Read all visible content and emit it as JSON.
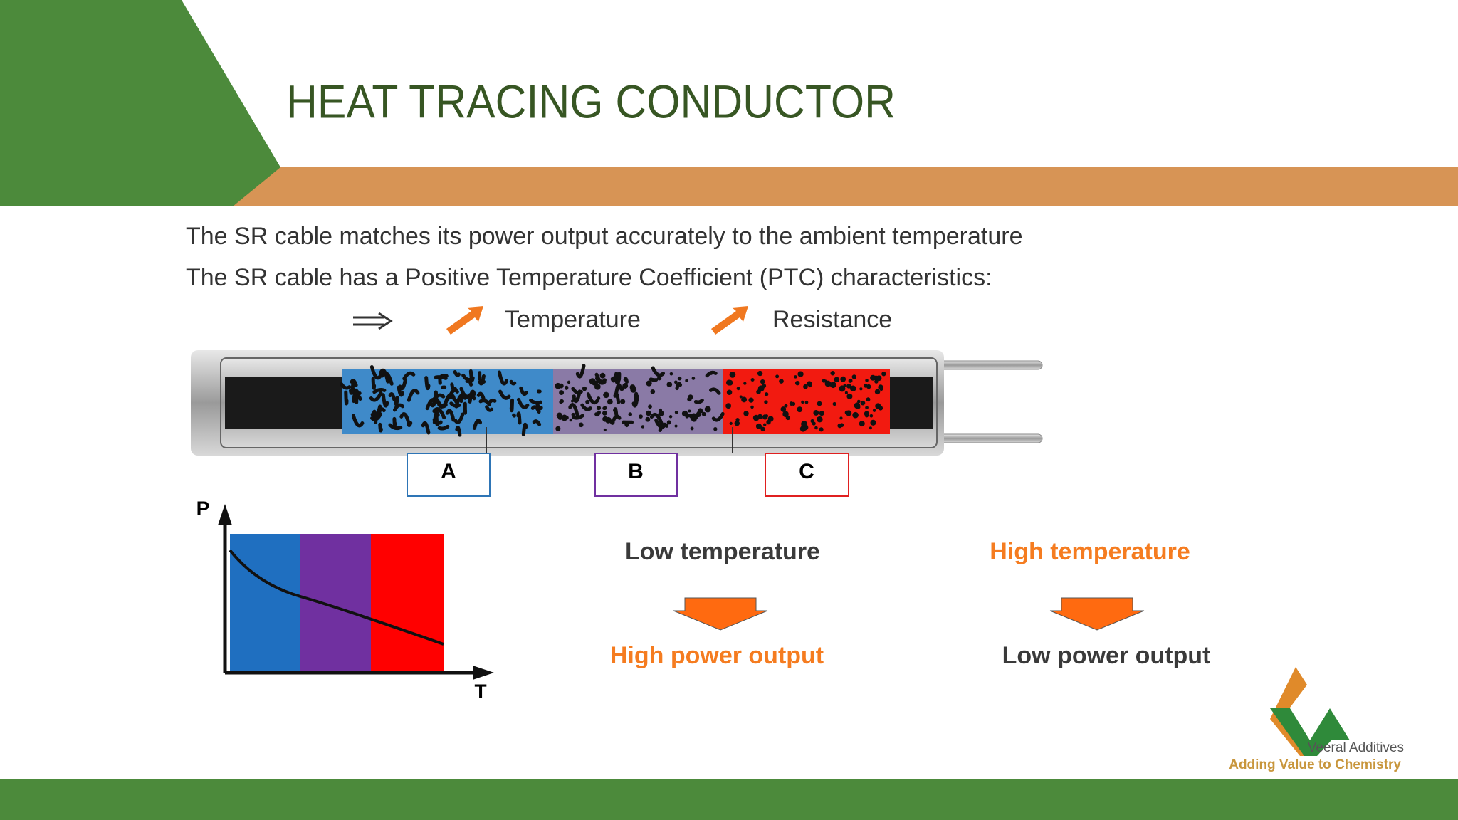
{
  "header": {
    "title": "HEAT TRACING CONDUCTOR"
  },
  "body": {
    "lines": [
      "The SR cable matches its power output accurately to the ambient temperature",
      "The SR cable has a Positive Temperature Coefficient (PTC) characteristics:"
    ],
    "relation": {
      "first": "Temperature",
      "second": "Resistance"
    }
  },
  "diagram": {
    "zones": [
      "A",
      "B",
      "C"
    ]
  },
  "graph": {
    "y_label": "P",
    "x_label": "T"
  },
  "effects": [
    {
      "condition": "Low temperature",
      "result": "High power output"
    },
    {
      "condition": "High temperature",
      "result": "Low power output"
    }
  ],
  "logo": {
    "name": "Veeral Additives",
    "tagline": "Adding Value to Chemistry"
  }
}
